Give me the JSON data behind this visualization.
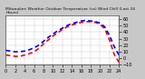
{
  "title": "Milwaukee Weather Outdoor Temperature (vs) Wind Chill (Last 24 Hours)",
  "bg_color": "#c8c8c8",
  "plot_bg": "#ffffff",
  "temp_color": "#0000ff",
  "windchill_color": "#ff0000",
  "temp_values": [
    12,
    11,
    10,
    10,
    11,
    13,
    16,
    20,
    26,
    32,
    37,
    42,
    46,
    50,
    53,
    55,
    57,
    58,
    57,
    56,
    54,
    48,
    35,
    18,
    5
  ],
  "windchill_values": [
    5,
    4,
    3,
    3,
    5,
    7,
    10,
    15,
    22,
    28,
    34,
    39,
    44,
    48,
    51,
    53,
    55,
    56,
    56,
    55,
    52,
    45,
    28,
    6,
    -6
  ],
  "ylim_min": -10,
  "ylim_max": 65,
  "ytick_vals": [
    -10,
    0,
    10,
    20,
    30,
    40,
    50,
    60
  ],
  "n_points": 25,
  "line_width": 1.2,
  "dash_on": 3.0,
  "dash_off": 2.0,
  "grid_color": "#999999",
  "title_fontsize": 3.2,
  "tick_fontsize": 3.5,
  "spine_color": "#444444"
}
